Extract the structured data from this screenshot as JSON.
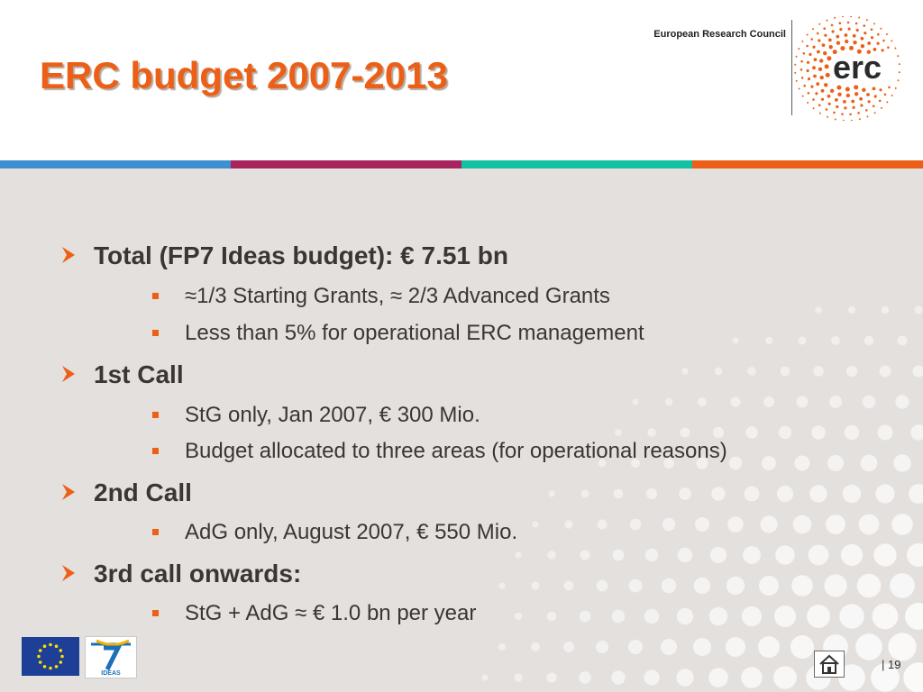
{
  "slide": {
    "title": "ERC budget 2007-2013",
    "organization": "European Research Council",
    "logo_text": "erc",
    "page_number": "| 19"
  },
  "colors": {
    "accent_orange": "#ec5f16",
    "stripe_blue": "#3d8fcf",
    "stripe_magenta": "#a8245e",
    "stripe_green": "#14c1a0",
    "stripe_orange": "#ec5f16",
    "eu_blue": "#1d3f96",
    "eu_star_yellow": "#ffdd00"
  },
  "bullets": [
    {
      "text": "Total (FP7 Ideas budget): € 7.51 bn",
      "sub": [
        "≈1/3 Starting Grants, ≈ 2/3 Advanced Grants",
        "Less than 5% for operational ERC management"
      ]
    },
    {
      "text": "1st Call",
      "sub": [
        "StG only, Jan 2007, € 300 Mio.",
        "Budget allocated to three areas (for operational reasons)"
      ]
    },
    {
      "text": "2nd Call",
      "sub": [
        "AdG only, August 2007, € 550 Mio."
      ]
    },
    {
      "text": "3rd call onwards:",
      "sub": [
        "StG + AdG ≈ € 1.0 bn per year"
      ]
    }
  ],
  "footer": {
    "fp7_logo_text": "IDEAS",
    "icons": [
      "eu-flag-icon",
      "fp7-ideas-logo-icon",
      "home-icon"
    ]
  }
}
